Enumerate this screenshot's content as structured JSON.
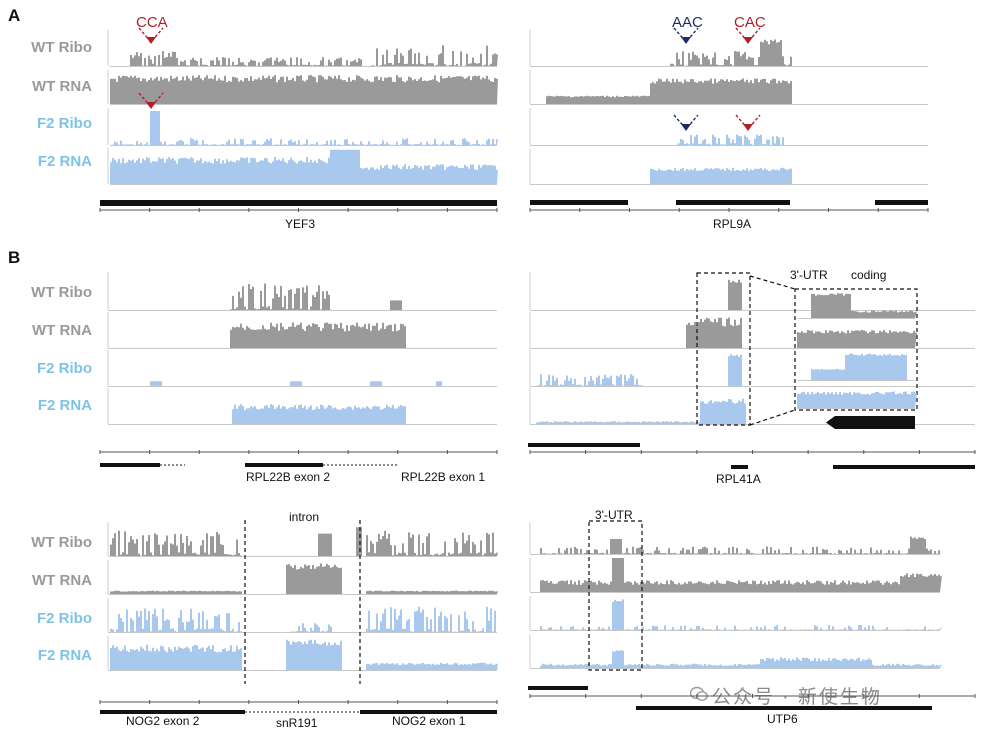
{
  "panels": {
    "a": "A",
    "b": "B"
  },
  "row_labels": {
    "wt_ribo": "WT Ribo",
    "wt_rna": "WT RNA",
    "f2_ribo": "F2 Ribo",
    "f2_rna": "F2 RNA"
  },
  "annotations": {
    "cca": "CCA",
    "aac": "AAC",
    "cac": "CAC",
    "utr3_a": "3'-UTR",
    "coding": "coding",
    "intron": "intron",
    "utr3_b": "3'-UTR"
  },
  "genes": {
    "yef3": "YEF3",
    "rpl9a": "RPL9A",
    "rpl22b_exon2": "RPL22B exon 2",
    "rpl22b_exon1": "RPL22B exon 1",
    "rpl41a": "RPL41A",
    "rpl41a_box": "RPL41A",
    "nog2_exon2": "NOG2 exon 2",
    "snr191": "snR191",
    "nog2_exon1": "NOG2 exon 1",
    "utp6": "UTP6"
  },
  "colors": {
    "wt": "#9a9a9a",
    "f2": "#a9c8ee",
    "red": "#b21f2a",
    "navy": "#1f2a6b"
  },
  "watermark": "公众号 · 新使生物"
}
